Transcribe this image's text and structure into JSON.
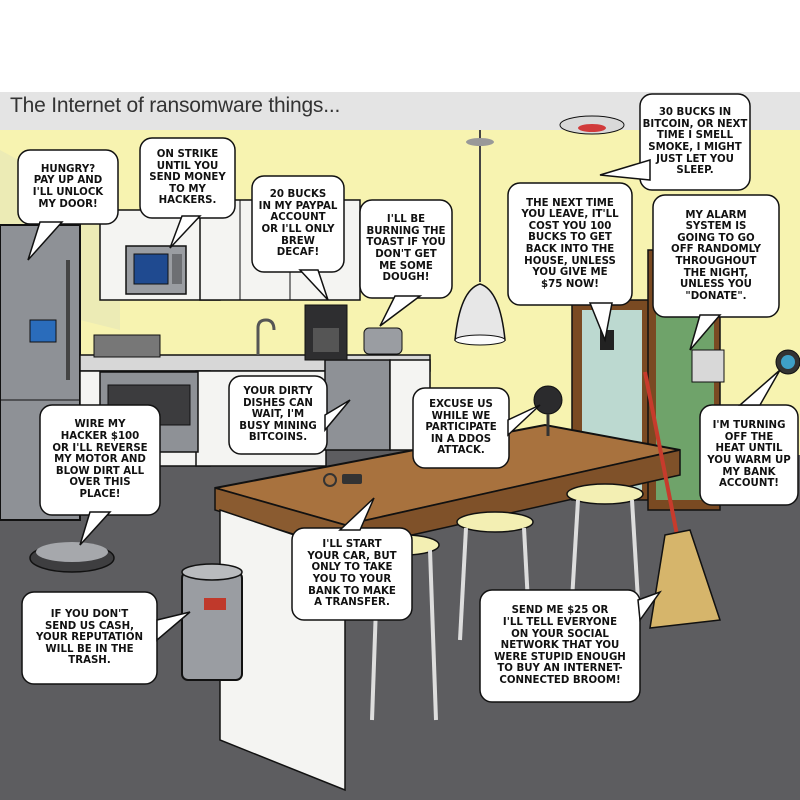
{
  "title": "The Internet of ransomware things...",
  "colors": {
    "wall": "#f7f3b0",
    "ceiling": "#e3e3e3",
    "floor": "#5d5d60",
    "counter_top": "#a8723e",
    "cabinet": "#f4f4f2",
    "steel": "#8e9196",
    "outline": "#111111",
    "bubble_fill": "#ffffff"
  },
  "bubbles": [
    {
      "id": "door",
      "text": "HUNGRY? PAY UP AND I'LL UNLOCK MY DOOR!",
      "lines": [
        "HUNGRY?",
        "PAY UP AND",
        "I'LL UNLOCK",
        "MY DOOR!"
      ]
    },
    {
      "id": "microwave",
      "text": "ON STRIKE UNTIL YOU SEND MONEY TO MY HACKERS.",
      "lines": [
        "ON STRIKE",
        "UNTIL YOU",
        "SEND MONEY",
        "TO MY",
        "HACKERS."
      ]
    },
    {
      "id": "coffee",
      "text": "20 BUCKS IN MY PAYPAL ACCOUNT OR I'LL ONLY BREW DECAF!",
      "lines": [
        "20 BUCKS",
        "IN MY PAYPAL",
        "ACCOUNT",
        "OR I'LL ONLY",
        "BREW",
        "DECAF!"
      ]
    },
    {
      "id": "toaster",
      "text": "I'LL BE BURNING THE TOAST IF YOU DON'T GET ME SOME DOUGH!",
      "lines": [
        "I'LL BE",
        "BURNING THE",
        "TOAST IF YOU",
        "DON'T GET",
        "ME SOME",
        "DOUGH!"
      ]
    },
    {
      "id": "door_lock",
      "text": "THE NEXT TIME YOU LEAVE, IT'LL COST YOU 100 BUCKS TO GET BACK INTO THE HOUSE, UNLESS YOU GIVE ME $75 NOW!",
      "lines": [
        "THE NEXT TIME",
        "YOU LEAVE, IT'LL",
        "COST YOU 100",
        "BUCKS TO GET",
        "BACK INTO THE",
        "HOUSE, UNLESS",
        "YOU GIVE ME",
        "$75 NOW!"
      ]
    },
    {
      "id": "smoke",
      "text": "30 BUCKS IN BITCOIN, OR NEXT TIME I SMELL SMOKE, I MIGHT JUST LET YOU SLEEP.",
      "lines": [
        "30 BUCKS IN",
        "BITCOIN, OR NEXT",
        "TIME I SMELL",
        "SMOKE, I MIGHT",
        "JUST LET YOU",
        "SLEEP."
      ]
    },
    {
      "id": "alarm",
      "text": "MY ALARM SYSTEM IS GOING TO GO OFF RANDOMLY THROUGHOUT THE NIGHT, UNLESS YOU \"DONATE\".",
      "lines": [
        "MY ALARM",
        "SYSTEM IS",
        "GOING TO GO",
        "OFF RANDOMLY",
        "THROUGHOUT",
        "THE NIGHT,",
        "UNLESS YOU",
        "\"DONATE\"."
      ]
    },
    {
      "id": "dishwasher",
      "text": "YOUR DIRTY DISHES CAN WAIT, I'M BUSY MINING BITCOINS.",
      "lines": [
        "YOUR DIRTY",
        "DISHES CAN",
        "WAIT, I'M",
        "BUSY MINING",
        "BITCOINS."
      ]
    },
    {
      "id": "lamp",
      "text": "EXCUSE US WHILE WE PARTICIPATE IN A DDOS ATTACK.",
      "lines": [
        "EXCUSE US",
        "WHILE WE",
        "PARTICIPATE",
        "IN A DDOS",
        "ATTACK."
      ]
    },
    {
      "id": "vacuum",
      "text": "WIRE MY HACKER $100 OR I'LL REVERSE MY MOTOR AND BLOW DIRT ALL OVER THIS PLACE!",
      "lines": [
        "WIRE MY",
        "HACKER $100",
        "OR I'LL REVERSE",
        "MY MOTOR AND",
        "BLOW DIRT ALL",
        "OVER THIS",
        "PLACE!"
      ]
    },
    {
      "id": "thermostat",
      "text": "I'M TURNING OFF THE HEAT UNTIL YOU WARM UP MY BANK ACCOUNT!",
      "lines": [
        "I'M TURNING",
        "OFF THE",
        "HEAT UNTIL",
        "YOU WARM UP",
        "MY BANK",
        "ACCOUNT!"
      ]
    },
    {
      "id": "car_keys",
      "text": "I'LL START YOUR CAR, BUT ONLY TO TAKE YOU TO YOUR BANK TO MAKE A TRANSFER.",
      "lines": [
        "I'LL START",
        "YOUR CAR, BUT",
        "ONLY TO TAKE",
        "YOU TO YOUR",
        "BANK TO MAKE",
        "A TRANSFER."
      ]
    },
    {
      "id": "trash",
      "text": "IF YOU DON'T SEND US CASH, YOUR REPUTATION WILL BE IN THE TRASH.",
      "lines": [
        "IF YOU DON'T",
        "SEND US CASH,",
        "YOUR REPUTATION",
        "WILL BE IN THE",
        "TRASH."
      ]
    },
    {
      "id": "broom",
      "text": "SEND ME $25 OR I'LL TELL EVERYONE ON YOUR SOCIAL NETWORK THAT YOU WERE STUPID ENOUGH TO BUY AN INTERNET-CONNECTED BROOM!",
      "lines": [
        "SEND ME $25 OR",
        "I'LL TELL EVERYONE",
        "ON YOUR SOCIAL",
        "NETWORK THAT YOU",
        "WERE STUPID ENOUGH",
        "TO BUY AN INTERNET-",
        "CONNECTED BROOM!"
      ]
    }
  ]
}
